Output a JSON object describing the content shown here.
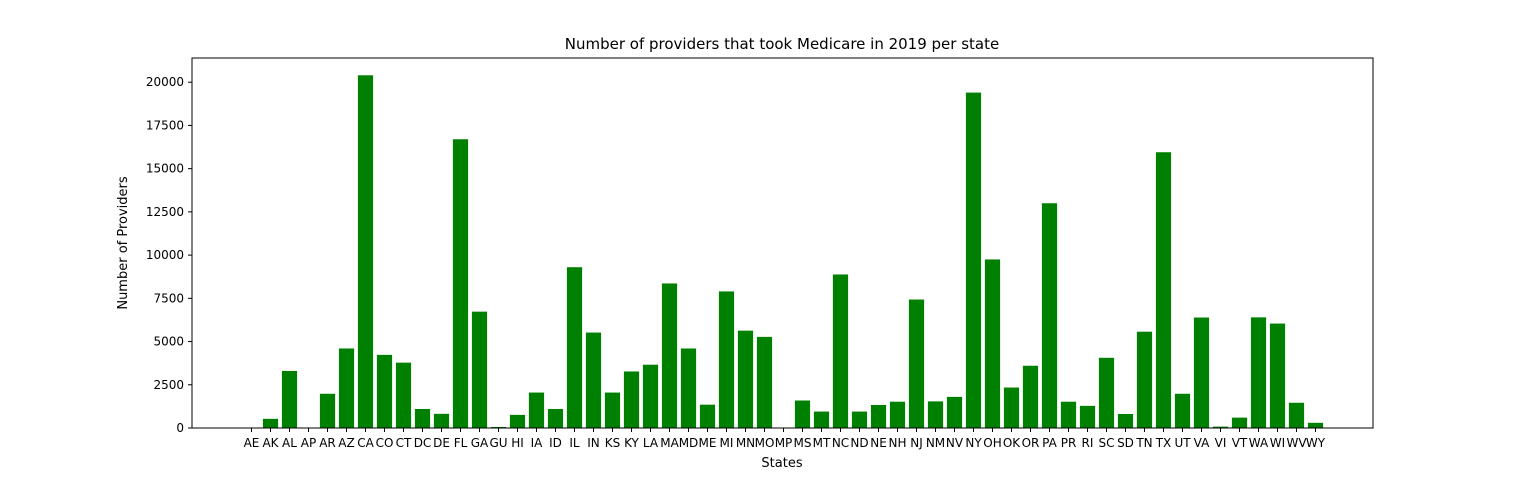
{
  "chart_data": {
    "type": "bar",
    "title": "Number of providers that took Medicare in 2019 per state",
    "xlabel": "States",
    "ylabel": "Number of Providers",
    "ylim": [
      0,
      21400
    ],
    "yticks": [
      0,
      2500,
      5000,
      7500,
      10000,
      12500,
      15000,
      17500,
      20000
    ],
    "grid": false,
    "bar_color": "#008000",
    "categories": [
      "AE",
      "AK",
      "AL",
      "AP",
      "AR",
      "AZ",
      "CA",
      "CO",
      "CT",
      "DC",
      "DE",
      "FL",
      "GA",
      "GU",
      "HI",
      "IA",
      "ID",
      "IL",
      "IN",
      "KS",
      "KY",
      "LA",
      "MA",
      "MD",
      "ME",
      "MI",
      "MN",
      "MO",
      "MP",
      "MS",
      "MT",
      "NC",
      "ND",
      "NE",
      "NH",
      "NJ",
      "NM",
      "NV",
      "NY",
      "OH",
      "OK",
      "OR",
      "PA",
      "PR",
      "RI",
      "SC",
      "SD",
      "TN",
      "TX",
      "UT",
      "VA",
      "VI",
      "VT",
      "WA",
      "WI",
      "WV",
      "WY"
    ],
    "values": [
      5,
      530,
      3300,
      5,
      1980,
      4600,
      20400,
      4230,
      3780,
      1100,
      820,
      16700,
      6730,
      60,
      760,
      2050,
      1100,
      9300,
      5520,
      2050,
      3270,
      3660,
      8360,
      4600,
      1350,
      7900,
      5630,
      5270,
      5,
      1590,
      950,
      8880,
      950,
      1330,
      1520,
      7430,
      1540,
      1800,
      19400,
      9750,
      2340,
      3600,
      13000,
      1520,
      1280,
      4060,
      810,
      5570,
      15950,
      1980,
      6390,
      80,
      600,
      6400,
      6040,
      1460,
      300
    ]
  }
}
